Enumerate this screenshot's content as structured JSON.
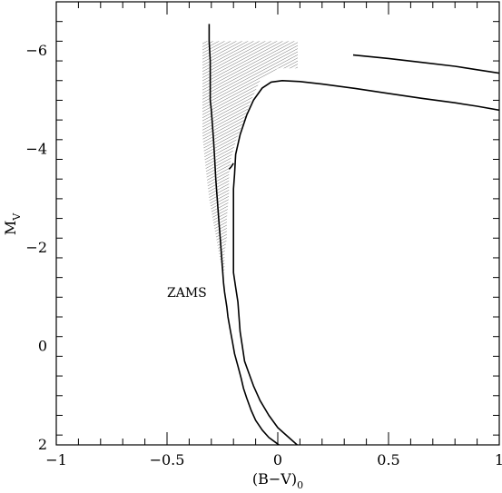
{
  "chart_data": {
    "type": "line",
    "xlabel": "(B−V)",
    "xlabel_subscript": "0",
    "ylabel": "M",
    "ylabel_subscript": "V",
    "xlim": [
      -1,
      1
    ],
    "ylim": [
      2,
      -7
    ],
    "y_inverted": true,
    "grid": false,
    "x_ticks": [
      {
        "value": -1,
        "label": "−1"
      },
      {
        "value": -0.5,
        "label": "−0.5"
      },
      {
        "value": 0,
        "label": "0"
      },
      {
        "value": 0.5,
        "label": "0.5"
      },
      {
        "value": 1,
        "label": "1"
      }
    ],
    "y_ticks": [
      {
        "value": -6,
        "label": "−6"
      },
      {
        "value": -4,
        "label": "−4"
      },
      {
        "value": -2,
        "label": "−2"
      },
      {
        "value": 0,
        "label": "0"
      },
      {
        "value": 2,
        "label": "2"
      }
    ],
    "x_minor_step": 0.1,
    "y_minor_step": 0.4,
    "annotations": [
      {
        "text": "ZAMS",
        "x": -0.5,
        "y": -1.1
      }
    ],
    "shaded_region": {
      "style": "hatched",
      "points": [
        [
          -0.34,
          -6.2
        ],
        [
          0.09,
          -6.2
        ],
        [
          0.09,
          -5.65
        ],
        [
          0.0,
          -5.65
        ],
        [
          -0.04,
          -5.5
        ],
        [
          -0.08,
          -5.4
        ],
        [
          -0.1,
          -5.2
        ],
        [
          -0.13,
          -4.9
        ],
        [
          -0.15,
          -4.6
        ],
        [
          -0.17,
          -4.4
        ],
        [
          -0.19,
          -4.15
        ],
        [
          -0.21,
          -3.85
        ],
        [
          -0.22,
          -3.5
        ],
        [
          -0.22,
          -3.1
        ],
        [
          -0.23,
          -2.6
        ],
        [
          -0.23,
          -2.2
        ],
        [
          -0.24,
          -1.9
        ],
        [
          -0.24,
          -1.5
        ],
        [
          -0.25,
          -1.5
        ],
        [
          -0.27,
          -2.0
        ],
        [
          -0.29,
          -2.5
        ],
        [
          -0.31,
          -3.0
        ],
        [
          -0.32,
          -3.4
        ],
        [
          -0.33,
          -3.8
        ],
        [
          -0.34,
          -4.3
        ],
        [
          -0.34,
          -5.0
        ]
      ]
    },
    "series": [
      {
        "style": "solid",
        "points": [
          [
            -0.31,
            -6.55
          ],
          [
            -0.31,
            -6.2
          ],
          [
            -0.305,
            -5.8
          ],
          [
            -0.305,
            -5.4
          ],
          [
            -0.305,
            -5.0
          ],
          [
            -0.3,
            -4.8
          ],
          [
            -0.295,
            -4.5
          ],
          [
            -0.29,
            -4.2
          ],
          [
            -0.285,
            -3.8
          ],
          [
            -0.28,
            -3.4
          ],
          [
            -0.275,
            -3.1
          ],
          [
            -0.27,
            -2.8
          ],
          [
            -0.265,
            -2.5
          ],
          [
            -0.26,
            -2.2
          ],
          [
            -0.255,
            -1.9
          ],
          [
            -0.25,
            -1.6
          ],
          [
            -0.245,
            -1.3
          ],
          [
            -0.24,
            -1.1
          ],
          [
            -0.23,
            -0.8
          ],
          [
            -0.225,
            -0.6
          ],
          [
            -0.215,
            -0.35
          ],
          [
            -0.205,
            -0.1
          ],
          [
            -0.195,
            0.15
          ],
          [
            -0.18,
            0.4
          ],
          [
            -0.165,
            0.65
          ],
          [
            -0.155,
            0.85
          ],
          [
            -0.14,
            1.05
          ],
          [
            -0.12,
            1.3
          ],
          [
            -0.1,
            1.5
          ],
          [
            -0.07,
            1.7
          ],
          [
            -0.04,
            1.85
          ],
          [
            -0.01,
            1.95
          ],
          [
            0.02,
            2.05
          ]
        ]
      },
      {
        "style": "solid",
        "points": [
          [
            0.34,
            -5.92
          ],
          [
            0.5,
            -5.85
          ],
          [
            0.65,
            -5.77
          ],
          [
            0.8,
            -5.69
          ],
          [
            0.9,
            -5.62
          ],
          [
            1.0,
            -5.55
          ],
          [
            1.02,
            -5.52
          ]
        ]
      },
      {
        "style": "solid",
        "points": [
          [
            0.1,
            2.05
          ],
          [
            0.05,
            1.85
          ],
          [
            0.0,
            1.65
          ],
          [
            -0.04,
            1.4
          ],
          [
            -0.08,
            1.1
          ],
          [
            -0.11,
            0.8
          ],
          [
            -0.13,
            0.55
          ],
          [
            -0.15,
            0.3
          ],
          [
            -0.16,
            0.0
          ],
          [
            -0.17,
            -0.3
          ],
          [
            -0.175,
            -0.6
          ],
          [
            -0.18,
            -0.9
          ],
          [
            -0.19,
            -1.2
          ],
          [
            -0.2,
            -1.5
          ],
          [
            -0.2,
            -1.8
          ],
          [
            -0.2,
            -2.1
          ],
          [
            -0.2,
            -2.5
          ],
          [
            -0.2,
            -2.9
          ],
          [
            -0.2,
            -3.2
          ],
          [
            -0.195,
            -3.5
          ],
          [
            -0.19,
            -3.9
          ],
          [
            -0.17,
            -4.3
          ],
          [
            -0.14,
            -4.7
          ],
          [
            -0.11,
            -5.0
          ],
          [
            -0.07,
            -5.25
          ],
          [
            -0.03,
            -5.37
          ],
          [
            0.02,
            -5.4
          ],
          [
            0.1,
            -5.38
          ],
          [
            0.2,
            -5.33
          ],
          [
            0.35,
            -5.24
          ],
          [
            0.5,
            -5.14
          ],
          [
            0.65,
            -5.04
          ],
          [
            0.8,
            -4.95
          ],
          [
            0.9,
            -4.88
          ],
          [
            1.0,
            -4.8
          ],
          [
            1.02,
            -4.78
          ]
        ]
      },
      {
        "style": "solid",
        "points": [
          [
            -0.22,
            -3.6
          ],
          [
            -0.21,
            -3.65
          ],
          [
            -0.2,
            -3.72
          ]
        ]
      }
    ]
  }
}
